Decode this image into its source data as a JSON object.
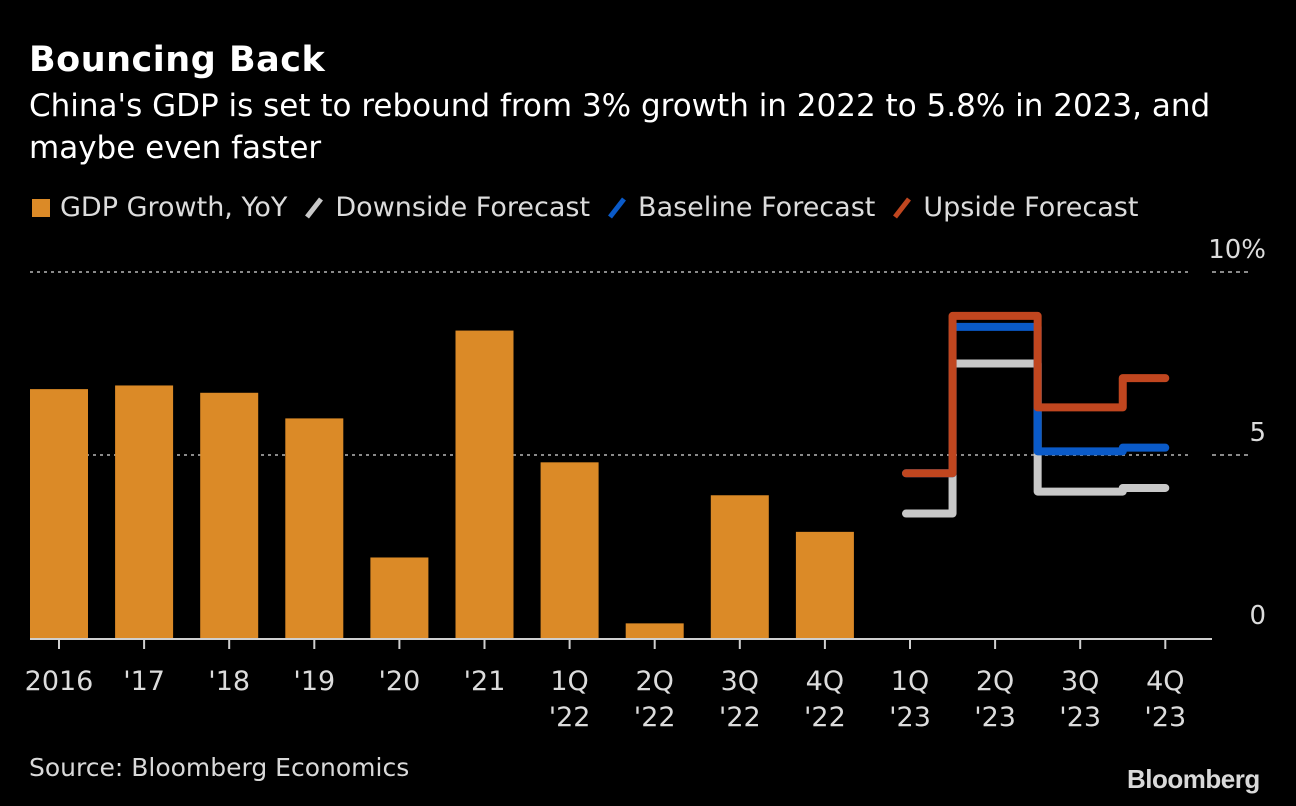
{
  "header": {
    "title": "Bouncing Back",
    "subtitle": "China's GDP is set to rebound from 3% growth in 2022 to 5.8% in 2023, and maybe even faster"
  },
  "footer": {
    "source": "Source: Bloomberg Economics",
    "logo": "Bloomberg"
  },
  "colors": {
    "bar": "#db8a27",
    "downside": "#c8c8c8",
    "baseline": "#0a5ac8",
    "upside": "#c0461f",
    "grid": "#8a8a8a",
    "axis": "#cfcfcf",
    "text": "#dcdcdc"
  },
  "chart_data": {
    "type": "bar",
    "title": "Bouncing Back",
    "subtitle": "China's GDP is set to rebound from 3% growth in 2022 to 5.8% in 2023, and maybe even faster",
    "xlabel": "",
    "ylabel": "",
    "ylim": [
      0,
      10
    ],
    "yticks": [
      {
        "value": 0,
        "label": "0"
      },
      {
        "value": 5,
        "label": "5"
      },
      {
        "value": 10,
        "label": "10%"
      }
    ],
    "grid": true,
    "legend_position": "top-left",
    "categories": [
      {
        "line1": "2016",
        "line2": ""
      },
      {
        "line1": "'17",
        "line2": ""
      },
      {
        "line1": "'18",
        "line2": ""
      },
      {
        "line1": "'19",
        "line2": ""
      },
      {
        "line1": "'20",
        "line2": ""
      },
      {
        "line1": "'21",
        "line2": ""
      },
      {
        "line1": "1Q",
        "line2": "'22"
      },
      {
        "line1": "2Q",
        "line2": "'22"
      },
      {
        "line1": "3Q",
        "line2": "'22"
      },
      {
        "line1": "4Q",
        "line2": "'22"
      },
      {
        "line1": "1Q",
        "line2": "'23"
      },
      {
        "line1": "2Q",
        "line2": "'23"
      },
      {
        "line1": "3Q",
        "line2": "'23"
      },
      {
        "line1": "4Q",
        "line2": "'23"
      }
    ],
    "series": [
      {
        "name": "GDP Growth, YoY",
        "kind": "bar",
        "color_key": "bar",
        "values": [
          6.8,
          6.9,
          6.7,
          6.0,
          2.2,
          8.4,
          4.8,
          0.4,
          3.9,
          2.9,
          null,
          null,
          null,
          null
        ]
      },
      {
        "name": "Downside Forecast",
        "kind": "step",
        "color_key": "downside",
        "values": [
          null,
          null,
          null,
          null,
          null,
          null,
          null,
          null,
          null,
          null,
          3.4,
          7.5,
          4.0,
          4.1
        ]
      },
      {
        "name": "Baseline Forecast",
        "kind": "step",
        "color_key": "baseline",
        "values": [
          null,
          null,
          null,
          null,
          null,
          null,
          null,
          null,
          null,
          null,
          4.5,
          8.5,
          5.1,
          5.2
        ]
      },
      {
        "name": "Upside Forecast",
        "kind": "step",
        "color_key": "upside",
        "values": [
          null,
          null,
          null,
          null,
          null,
          null,
          null,
          null,
          null,
          null,
          4.5,
          8.8,
          6.3,
          7.1
        ]
      }
    ]
  }
}
